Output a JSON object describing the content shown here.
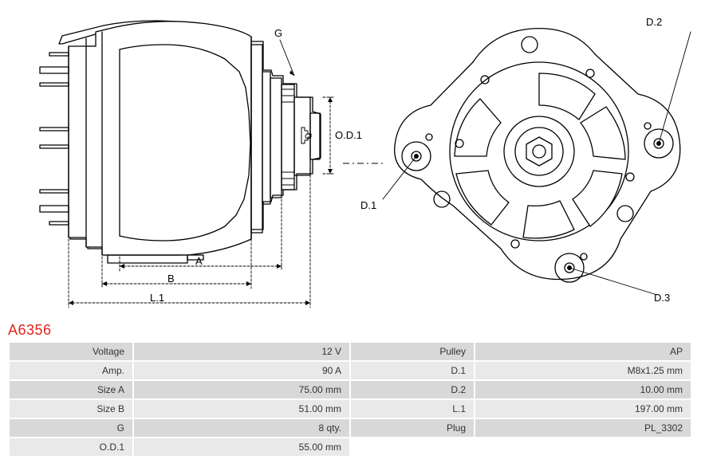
{
  "part_number": "A6356",
  "part_number_color": "#e2231a",
  "diagram": {
    "labels": {
      "G": "G",
      "OD1": "O.D.1",
      "A": "A",
      "B": "B",
      "L1": "L.1",
      "D1": "D.1",
      "D2": "D.2",
      "D3": "D.3"
    },
    "stroke_color": "#000000",
    "stroke_width": 1.2,
    "dim_font_size": 13
  },
  "table": {
    "header_bg": "#d8d8d8",
    "row_alt_bg": "#e9e9e9",
    "text_color": "#333333",
    "font_size": 12,
    "left": [
      {
        "label": "Voltage",
        "value": "12 V"
      },
      {
        "label": "Amp.",
        "value": "90 A"
      },
      {
        "label": "Size A",
        "value": "75.00 mm"
      },
      {
        "label": "Size B",
        "value": "51.00 mm"
      },
      {
        "label": "G",
        "value": "8 qty."
      },
      {
        "label": "O.D.1",
        "value": "55.00 mm"
      }
    ],
    "right": [
      {
        "label": "Pulley",
        "value": "AP"
      },
      {
        "label": "D.1",
        "value": "M8x1.25 mm"
      },
      {
        "label": "D.2",
        "value": "10.00 mm"
      },
      {
        "label": "L.1",
        "value": "197.00 mm"
      },
      {
        "label": "Plug",
        "value": "PL_3302"
      }
    ]
  }
}
